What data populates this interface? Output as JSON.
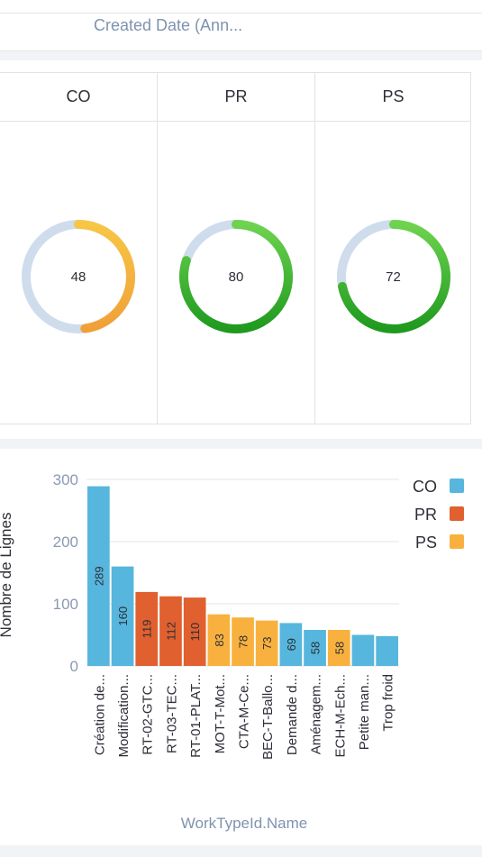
{
  "filter": {
    "label": "Created Date (Ann..."
  },
  "gauges": [
    {
      "title": "CO",
      "value": "48",
      "fraction": 0.48,
      "color_start": "#f7c645",
      "color_end": "#f0a038"
    },
    {
      "title": "PR",
      "value": "80",
      "fraction": 0.8,
      "color_start": "#6ed34f",
      "color_end": "#1f9a1f"
    },
    {
      "title": "PS",
      "value": "72",
      "fraction": 0.72,
      "color_start": "#6ed34f",
      "color_end": "#1f9a1f"
    }
  ],
  "gauge_track_color": "#cfdcec",
  "chart_data": {
    "type": "bar",
    "title": "",
    "xlabel": "WorkTypeId.Name",
    "ylabel": "Nombre de Lignes",
    "ylim": [
      0,
      300
    ],
    "yticks": [
      "300",
      "200",
      "100",
      "0"
    ],
    "yticks_values": [
      300,
      200,
      100,
      0
    ],
    "grid": true,
    "legend_position": "top-right",
    "legend": [
      {
        "name": "CO",
        "color": "#57b6dd"
      },
      {
        "name": "PR",
        "color": "#e0602f"
      },
      {
        "name": "PS",
        "color": "#f8b13e"
      }
    ],
    "categories": [
      "Création de...",
      "Modification...",
      "RT-02-GTC...",
      "RT-03-TEC...",
      "RT-01-PLAT...",
      "MOT-T-Mot...",
      "CTA-M-Ce...",
      "BEC-T-Ballo...",
      "Demande d...",
      "Aménagem...",
      "ECH-M-Ech...",
      "Petite man...",
      "Trop froid"
    ],
    "values": [
      289,
      160,
      119,
      112,
      110,
      83,
      78,
      73,
      69,
      58,
      58,
      50,
      48
    ],
    "data_labels": [
      "289",
      "160",
      "119",
      "112",
      "110",
      "83",
      "78",
      "73",
      "69",
      "58",
      "58",
      "",
      ""
    ],
    "series_of_bar": [
      "CO",
      "CO",
      "PR",
      "PR",
      "PR",
      "PS",
      "PS",
      "PS",
      "CO",
      "CO",
      "PS",
      "CO",
      "CO"
    ]
  }
}
